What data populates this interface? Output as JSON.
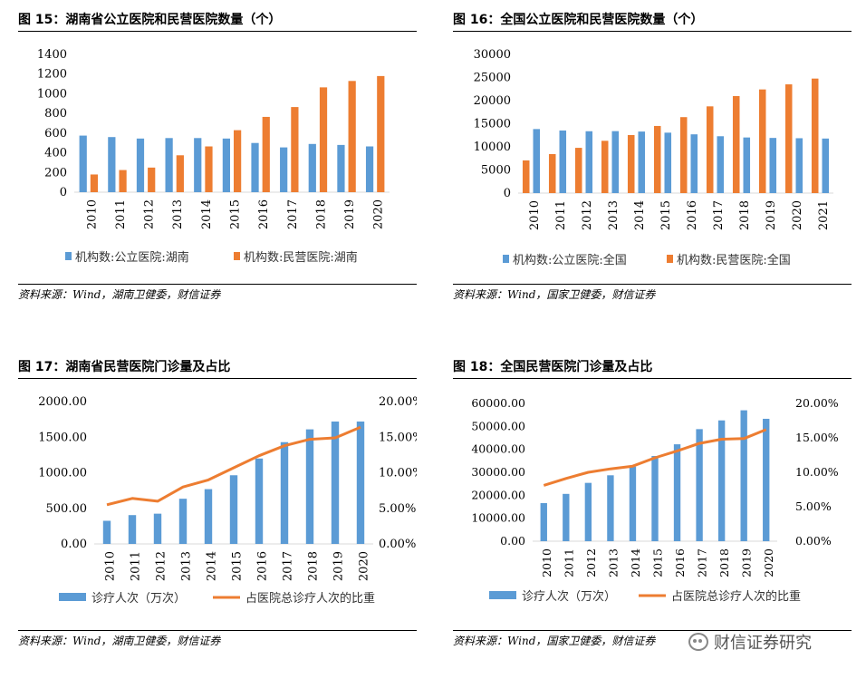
{
  "panels": [
    {
      "title": "图 15：湖南省公立医院和民营医院数量（个）",
      "source": "资料来源：Wind，湖南卫健委，财信证券"
    },
    {
      "title": "图 16：全国公立医院和民营医院数量（个）",
      "source": "资料来源：Wind，国家卫健委，财信证券"
    },
    {
      "title": "图 17：湖南省民营医院门诊量及占比",
      "source": "资料来源：Wind，湖南卫健委，财信证券"
    },
    {
      "title": "图 18：全国民营医院门诊量及占比",
      "source": "资料来源：Wind，国家卫健委，财信证券"
    }
  ],
  "watermark": {
    "text": "财信证券研究",
    "icon": "wechat-icon"
  },
  "colors": {
    "blue": "#5b9bd5",
    "orange": "#ed7d31",
    "axis": "#d9d9d9"
  },
  "chart_data": [
    {
      "type": "bar",
      "categories": [
        "2010",
        "2011",
        "2012",
        "2013",
        "2014",
        "2015",
        "2016",
        "2017",
        "2018",
        "2019",
        "2020"
      ],
      "series": [
        {
          "name": "机构数:公立医院:湖南",
          "values": [
            575,
            560,
            545,
            550,
            550,
            545,
            500,
            455,
            490,
            480,
            465
          ]
        },
        {
          "name": "机构数:民营医院:湖南",
          "values": [
            180,
            225,
            250,
            375,
            465,
            630,
            765,
            865,
            1065,
            1130,
            1180
          ]
        }
      ],
      "ylim": [
        0,
        1400
      ],
      "yticks": [
        0,
        200,
        400,
        600,
        800,
        1000,
        1200,
        1400
      ],
      "legend": "bottom"
    },
    {
      "type": "bar",
      "categories": [
        "2010",
        "2011",
        "2012",
        "2013",
        "2014",
        "2015",
        "2016",
        "2017",
        "2018",
        "2019",
        "2020",
        "2021"
      ],
      "series": [
        {
          "name": "机构数:公立医院:全国",
          "values": [
            13850,
            13540,
            13380,
            13400,
            13310,
            13070,
            12710,
            12300,
            12030,
            11930,
            11870,
            11800
          ]
        },
        {
          "name": "机构数:民营医院:全国",
          "values": [
            7070,
            8440,
            9790,
            11310,
            12550,
            14520,
            16430,
            18760,
            20980,
            22420,
            23520,
            24770
          ]
        }
      ],
      "series_order": [
        1,
        0
      ],
      "ylim": [
        0,
        30000
      ],
      "yticks": [
        0,
        5000,
        10000,
        15000,
        20000,
        25000,
        30000
      ],
      "legend": "bottom"
    },
    {
      "type": "bar",
      "categories": [
        "2010",
        "2011",
        "2012",
        "2013",
        "2014",
        "2015",
        "2016",
        "2017",
        "2018",
        "2019",
        "2020"
      ],
      "series": [
        {
          "name": "诊疗人次（万次）",
          "type": "bar",
          "axis": "left",
          "values": [
            325,
            405,
            425,
            635,
            770,
            965,
            1200,
            1430,
            1610,
            1720,
            1720
          ]
        },
        {
          "name": "占医院总诊疗人次的比重",
          "type": "line",
          "axis": "right",
          "values": [
            0.055,
            0.064,
            0.06,
            0.08,
            0.09,
            0.107,
            0.124,
            0.138,
            0.147,
            0.149,
            0.164
          ]
        }
      ],
      "ylim": [
        0,
        2000
      ],
      "yticks": [
        0,
        500,
        1000,
        1500,
        2000
      ],
      "ytick_labels": [
        "0.00",
        "500.00",
        "1000.00",
        "1500.00",
        "2000.00"
      ],
      "y2lim": [
        0,
        0.2
      ],
      "y2ticks": [
        0,
        0.05,
        0.1,
        0.15,
        0.2
      ],
      "y2tick_labels": [
        "0.00%",
        "5.00%",
        "10.00%",
        "15.00%",
        "20.00%"
      ],
      "legend": "bottom"
    },
    {
      "type": "bar",
      "categories": [
        "2010",
        "2011",
        "2012",
        "2013",
        "2014",
        "2015",
        "2016",
        "2017",
        "2018",
        "2019",
        "2020"
      ],
      "series": [
        {
          "name": "诊疗人次（万次）",
          "type": "bar",
          "axis": "left",
          "values": [
            16600,
            20600,
            25400,
            28700,
            32500,
            37100,
            42200,
            48800,
            52600,
            57000,
            53300
          ]
        },
        {
          "name": "占医院总诊疗人次的比重",
          "type": "line",
          "axis": "right",
          "values": [
            0.081,
            0.091,
            0.1,
            0.105,
            0.109,
            0.121,
            0.131,
            0.142,
            0.148,
            0.149,
            0.162
          ]
        }
      ],
      "ylim": [
        0,
        60000
      ],
      "yticks": [
        0,
        10000,
        20000,
        30000,
        40000,
        50000,
        60000
      ],
      "ytick_labels": [
        "0.00",
        "10000.00",
        "20000.00",
        "30000.00",
        "40000.00",
        "50000.00",
        "60000.00"
      ],
      "y2lim": [
        0,
        0.2
      ],
      "y2ticks": [
        0,
        0.05,
        0.1,
        0.15,
        0.2
      ],
      "y2tick_labels": [
        "0.00%",
        "5.00%",
        "10.00%",
        "15.00%",
        "20.00%"
      ],
      "legend": "bottom"
    }
  ]
}
